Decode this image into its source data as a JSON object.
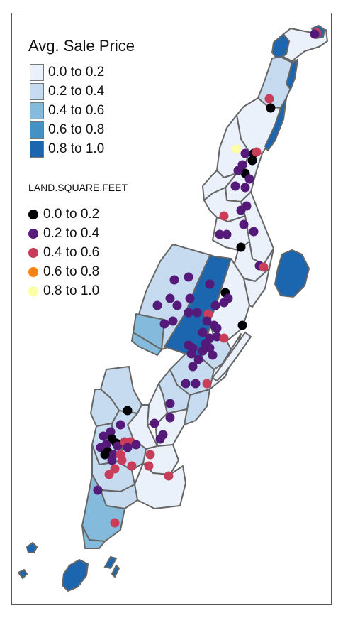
{
  "fill_legend": {
    "title": "Avg. Sale Price",
    "items": [
      {
        "label": "0.0 to 0.2",
        "color": "#eaf1fa"
      },
      {
        "label": "0.2 to 0.4",
        "color": "#c6dbef"
      },
      {
        "label": "0.4 to 0.6",
        "color": "#84bbdc"
      },
      {
        "label": "0.6 to 0.8",
        "color": "#4292c6"
      },
      {
        "label": "0.8 to 1.0",
        "color": "#1c66b0"
      }
    ]
  },
  "point_legend": {
    "title": "LAND.SQUARE.FEET",
    "items": [
      {
        "label": "0.0 to 0.2",
        "color": "#000004"
      },
      {
        "label": "0.2 to 0.4",
        "color": "#55197a"
      },
      {
        "label": "0.4 to 0.6",
        "color": "#c83e5a"
      },
      {
        "label": "0.6 to 0.8",
        "color": "#f78212"
      },
      {
        "label": "0.8 to 1.0",
        "color": "#fcffa4"
      }
    ]
  },
  "map": {
    "water_color": "#1c66b0",
    "border_color": "#666666"
  }
}
